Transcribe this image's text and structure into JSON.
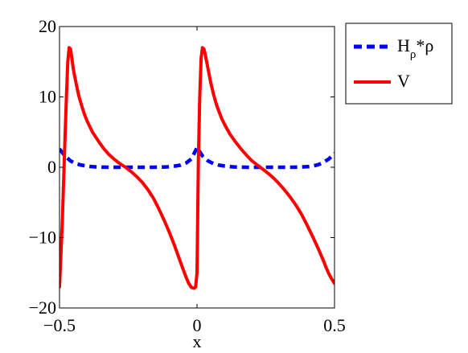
{
  "chart_data": {
    "type": "line",
    "title": "",
    "xlabel": "x",
    "ylabel": "",
    "xlim": [
      -0.5,
      0.5
    ],
    "ylim": [
      -20,
      20
    ],
    "xticks": [
      -0.5,
      0,
      0.5
    ],
    "xtick_labels": [
      "−0.5",
      "0",
      "0.5"
    ],
    "yticks": [
      -20,
      -10,
      0,
      10,
      20
    ],
    "ytick_labels": [
      "−20",
      "−10",
      "0",
      "10",
      "20"
    ],
    "grid": false,
    "legend_position": "outside-top-right",
    "series": [
      {
        "name": "Hρ*ρ",
        "legend": {
          "main": "H",
          "sub": "ρ",
          "rest": "*ρ"
        },
        "color": "#0000ff",
        "style": "dashed",
        "x": [
          -0.5,
          -0.48,
          -0.46,
          -0.44,
          -0.42,
          -0.4,
          -0.38,
          -0.36,
          -0.34,
          -0.32,
          -0.3,
          -0.28,
          -0.26,
          -0.24,
          -0.22,
          -0.2,
          -0.18,
          -0.16,
          -0.14,
          -0.12,
          -0.1,
          -0.08,
          -0.06,
          -0.04,
          -0.02,
          0,
          0.02,
          0.04,
          0.06,
          0.08,
          0.1,
          0.12,
          0.14,
          0.16,
          0.18,
          0.2,
          0.22,
          0.24,
          0.26,
          0.28,
          0.3,
          0.32,
          0.34,
          0.36,
          0.38,
          0.4,
          0.42,
          0.44,
          0.46,
          0.48,
          0.5
        ],
        "y": [
          2.6,
          1.6,
          0.9,
          0.5,
          0.3,
          0.17,
          0.08,
          0.03,
          0.01,
          0,
          0,
          0,
          0,
          0,
          0,
          0,
          0,
          0,
          0.01,
          0.03,
          0.08,
          0.17,
          0.3,
          0.6,
          1.2,
          2.8,
          1.6,
          0.9,
          0.5,
          0.3,
          0.17,
          0.08,
          0.03,
          0.01,
          0,
          0,
          0,
          0,
          0,
          0,
          0,
          0,
          0,
          0.01,
          0.03,
          0.08,
          0.17,
          0.35,
          0.7,
          1.2,
          2.0
        ]
      },
      {
        "name": "V",
        "legend": {
          "main": "V",
          "sub": "",
          "rest": ""
        },
        "color": "#ff0000",
        "style": "solid",
        "x": [
          -0.5,
          -0.49,
          -0.48,
          -0.475,
          -0.47,
          -0.465,
          -0.46,
          -0.455,
          -0.45,
          -0.44,
          -0.43,
          -0.42,
          -0.41,
          -0.4,
          -0.38,
          -0.36,
          -0.34,
          -0.32,
          -0.3,
          -0.28,
          -0.26,
          -0.24,
          -0.22,
          -0.2,
          -0.18,
          -0.16,
          -0.14,
          -0.12,
          -0.1,
          -0.08,
          -0.06,
          -0.04,
          -0.03,
          -0.02,
          -0.01,
          -0.005,
          0,
          0.005,
          0.01,
          0.015,
          0.02,
          0.025,
          0.03,
          0.04,
          0.05,
          0.06,
          0.07,
          0.08,
          0.09,
          0.1,
          0.12,
          0.14,
          0.16,
          0.18,
          0.2,
          0.22,
          0.24,
          0.26,
          0.28,
          0.3,
          0.32,
          0.34,
          0.36,
          0.38,
          0.4,
          0.42,
          0.44,
          0.46,
          0.47,
          0.48,
          0.49,
          0.5
        ],
        "y": [
          -17,
          -8,
          4,
          10,
          15,
          17,
          16.8,
          15.5,
          14,
          12,
          10.2,
          8.8,
          7.6,
          6.6,
          5,
          3.8,
          2.7,
          1.8,
          1.1,
          0.5,
          0,
          -0.6,
          -1.3,
          -2.1,
          -3.1,
          -4.3,
          -5.8,
          -7.5,
          -9.3,
          -11.3,
          -13.5,
          -15.6,
          -16.5,
          -17.1,
          -17.2,
          -17,
          -15,
          1,
          10,
          15.5,
          17,
          16.8,
          16,
          14,
          12,
          10.4,
          9,
          7.9,
          6.9,
          6.1,
          4.7,
          3.6,
          2.6,
          1.7,
          0.9,
          0.3,
          -0.3,
          -0.9,
          -1.6,
          -2.4,
          -3.3,
          -4.3,
          -5.4,
          -6.7,
          -8.2,
          -9.8,
          -11.5,
          -13.3,
          -14.3,
          -15.2,
          -15.9,
          -16.5
        ]
      }
    ]
  }
}
